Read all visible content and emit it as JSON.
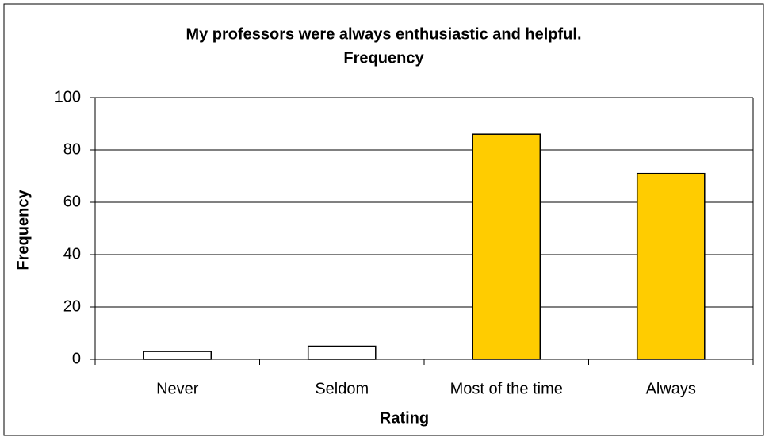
{
  "chart_data": {
    "type": "bar",
    "title": "My professors were always enthusiastic and helpful.",
    "subtitle": "Frequency",
    "x_label": "Rating",
    "y_label": "Frequency",
    "categories": [
      "Never",
      "Seldom",
      "Most of the time",
      "Always"
    ],
    "values": [
      3,
      5,
      86,
      71
    ],
    "colors": [
      "#ffffff",
      "#ffffff",
      "#ffcc00",
      "#ffcc00"
    ],
    "ylim": [
      0,
      100
    ],
    "yticks": [
      0,
      20,
      40,
      60,
      80,
      100
    ],
    "grid": true
  }
}
